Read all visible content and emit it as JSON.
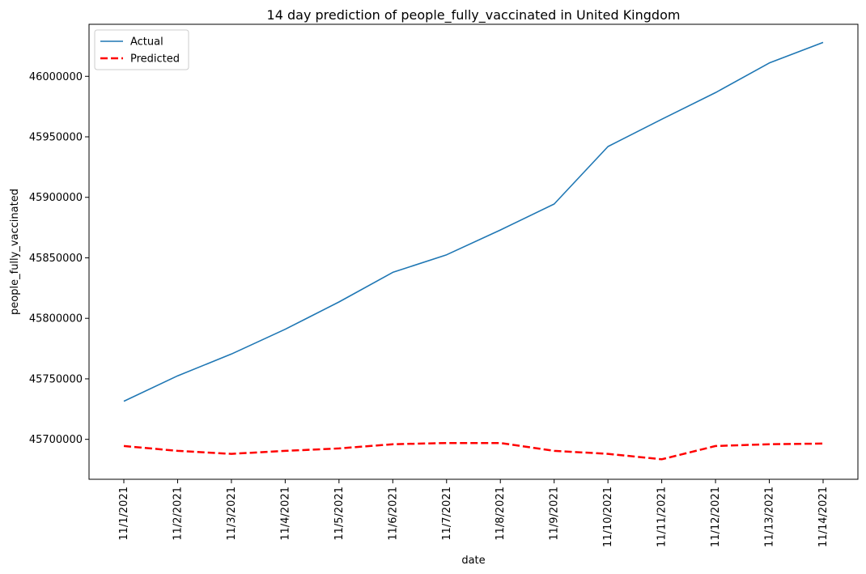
{
  "chart_data": {
    "type": "line",
    "title": "14 day prediction of people_fully_vaccinated in United Kingdom",
    "xlabel": "date",
    "ylabel": "people_fully_vaccinated",
    "categories": [
      "11/1/2021",
      "11/2/2021",
      "11/3/2021",
      "11/4/2021",
      "11/5/2021",
      "11/6/2021",
      "11/7/2021",
      "11/8/2021",
      "11/9/2021",
      "11/10/2021",
      "11/11/2021",
      "11/12/2021",
      "11/13/2021",
      "11/14/2021"
    ],
    "y_ticks": [
      45700000,
      45750000,
      45800000,
      45850000,
      45900000,
      45950000,
      46000000
    ],
    "ylim": [
      45667000,
      46043000
    ],
    "grid": false,
    "legend_position": "top-left",
    "series": [
      {
        "name": "Actual",
        "color": "#1f77b4",
        "style": "solid",
        "values": [
          45731500,
          45752500,
          45770500,
          45791000,
          45813500,
          45838000,
          45852500,
          45873000,
          45894500,
          45942000,
          45964500,
          45986500,
          46011000,
          46028000
        ]
      },
      {
        "name": "Predicted",
        "color": "#ff0000",
        "style": "dashed",
        "values": [
          45694500,
          45690500,
          45688000,
          45690500,
          45692500,
          45696000,
          45697000,
          45697000,
          45690500,
          45688000,
          45683500,
          45694500,
          45696000,
          45696500
        ]
      }
    ]
  }
}
